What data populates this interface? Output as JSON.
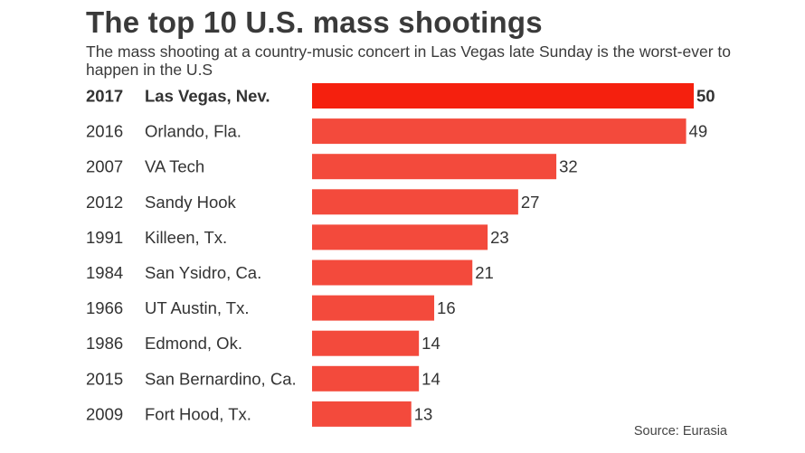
{
  "chart_data": {
    "type": "bar",
    "orientation": "horizontal",
    "title": "The top 10 U.S. mass shootings",
    "subtitle": "The mass shooting at a country-music concert in Las Vegas late Sunday is the worst-ever to happen in the U.S",
    "source": "Source: Eurasia",
    "highlight_color": "#f5200e",
    "bar_color": "#f34a3c",
    "text_color": "#333333",
    "xlim": [
      0,
      50
    ],
    "rows": [
      {
        "year": "2017",
        "place": "Las Vegas, Nev.",
        "value": 50,
        "highlight": true
      },
      {
        "year": "2016",
        "place": "Orlando, Fla.",
        "value": 49,
        "highlight": false
      },
      {
        "year": "2007",
        "place": "VA Tech",
        "value": 32,
        "highlight": false
      },
      {
        "year": "2012",
        "place": "Sandy Hook",
        "value": 27,
        "highlight": false
      },
      {
        "year": "1991",
        "place": "Killeen, Tx.",
        "value": 23,
        "highlight": false
      },
      {
        "year": "1984",
        "place": "San Ysidro, Ca.",
        "value": 21,
        "highlight": false
      },
      {
        "year": "1966",
        "place": "UT Austin, Tx.",
        "value": 16,
        "highlight": false
      },
      {
        "year": "1986",
        "place": "Edmond, Ok.",
        "value": 14,
        "highlight": false
      },
      {
        "year": "2015",
        "place": "San Bernardino, Ca.",
        "value": 14,
        "highlight": false
      },
      {
        "year": "2009",
        "place": "Fort Hood, Tx.",
        "value": 13,
        "highlight": false
      }
    ]
  }
}
